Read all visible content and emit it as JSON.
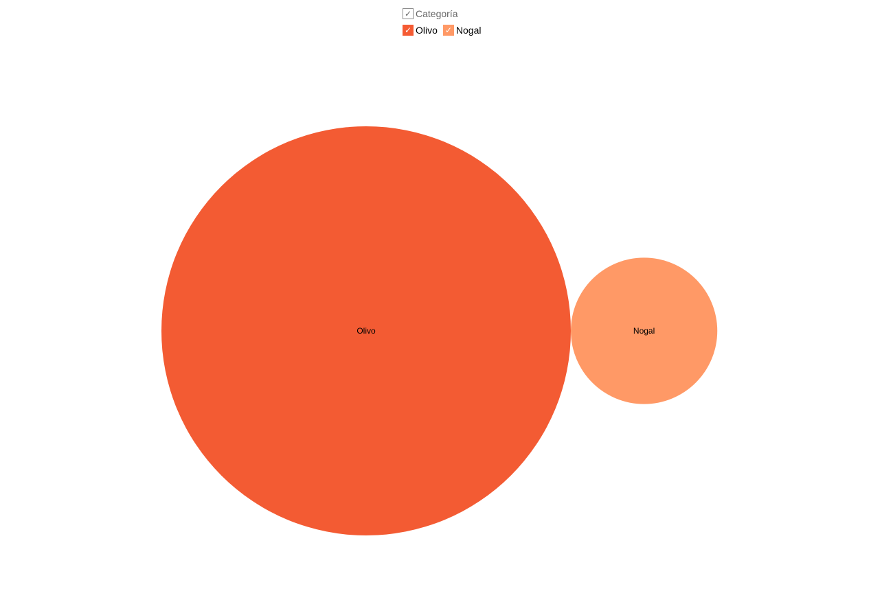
{
  "legend": {
    "title": "Categoría",
    "items": [
      {
        "label": "Olivo",
        "color": "#f55b33"
      },
      {
        "label": "Nogal",
        "color": "#ff9966"
      }
    ]
  },
  "chart_data": {
    "type": "bubble",
    "title": "",
    "series": [
      {
        "name": "Olivo",
        "label": "Olivo",
        "relative_size": 1.0,
        "color": "#f35b33"
      },
      {
        "name": "Nogal",
        "label": "Nogal",
        "relative_size": 0.128,
        "color": "#ff9966"
      }
    ],
    "legend_position": "top-center",
    "grid": false
  }
}
